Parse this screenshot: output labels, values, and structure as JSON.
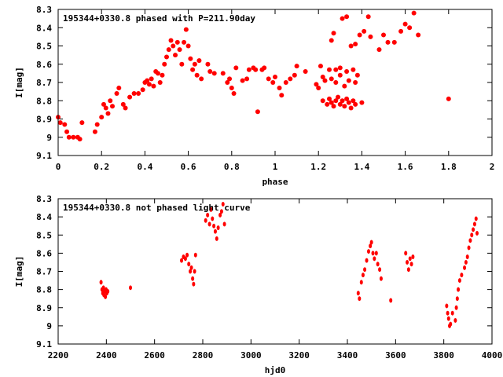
{
  "colors": {
    "points": "#ff0000",
    "axes": "#000000"
  },
  "chart_data": [
    {
      "type": "scatter",
      "title": "195344+0330.8 phased with P=211.90day",
      "xlabel": "phase",
      "ylabel": "I[mag]",
      "xlim": [
        0,
        2
      ],
      "ylim": [
        8.3,
        9.1
      ],
      "y_inverted": true,
      "xticks": [
        "0",
        "0.2",
        "0.4",
        "0.6",
        "0.8",
        "1",
        "1.2",
        "1.4",
        "1.6",
        "1.8",
        "2"
      ],
      "yticks": [
        "8.3",
        "8.4",
        "8.5",
        "8.6",
        "8.7",
        "8.8",
        "8.9",
        "9",
        "9.1"
      ],
      "legend": "top-left",
      "points": [
        [
          0,
          8.89
        ],
        [
          0.01,
          8.92
        ],
        [
          0.03,
          8.93
        ],
        [
          0.04,
          8.97
        ],
        [
          0.05,
          9.0
        ],
        [
          0.07,
          9.0
        ],
        [
          0.09,
          9.0
        ],
        [
          0.1,
          9.01
        ],
        [
          0.11,
          8.92
        ],
        [
          0.17,
          8.97
        ],
        [
          0.18,
          8.93
        ],
        [
          0.2,
          8.89
        ],
        [
          0.21,
          8.82
        ],
        [
          0.22,
          8.84
        ],
        [
          0.23,
          8.87
        ],
        [
          0.24,
          8.8
        ],
        [
          0.25,
          8.83
        ],
        [
          0.27,
          8.76
        ],
        [
          0.28,
          8.73
        ],
        [
          0.3,
          8.82
        ],
        [
          0.31,
          8.84
        ],
        [
          0.33,
          8.78
        ],
        [
          0.35,
          8.76
        ],
        [
          0.37,
          8.76
        ],
        [
          0.39,
          8.74
        ],
        [
          0.4,
          8.7
        ],
        [
          0.41,
          8.69
        ],
        [
          0.42,
          8.71
        ],
        [
          0.43,
          8.68
        ],
        [
          0.44,
          8.72
        ],
        [
          0.45,
          8.64
        ],
        [
          0.46,
          8.65
        ],
        [
          0.47,
          8.7
        ],
        [
          0.48,
          8.66
        ],
        [
          0.49,
          8.6
        ],
        [
          0.5,
          8.56
        ],
        [
          0.51,
          8.52
        ],
        [
          0.52,
          8.47
        ],
        [
          0.53,
          8.5
        ],
        [
          0.54,
          8.55
        ],
        [
          0.55,
          8.48
        ],
        [
          0.56,
          8.52
        ],
        [
          0.57,
          8.6
        ],
        [
          0.58,
          8.48
        ],
        [
          0.59,
          8.41
        ],
        [
          0.6,
          8.5
        ],
        [
          0.61,
          8.57
        ],
        [
          0.62,
          8.63
        ],
        [
          0.63,
          8.6
        ],
        [
          0.64,
          8.66
        ],
        [
          0.65,
          8.58
        ],
        [
          0.66,
          8.68
        ],
        [
          0.69,
          8.6
        ],
        [
          0.7,
          8.64
        ],
        [
          0.72,
          8.65
        ],
        [
          0.76,
          8.65
        ],
        [
          0.78,
          8.7
        ],
        [
          0.79,
          8.68
        ],
        [
          0.8,
          8.73
        ],
        [
          0.81,
          8.76
        ],
        [
          0.82,
          8.62
        ],
        [
          0.85,
          8.69
        ],
        [
          0.87,
          8.68
        ],
        [
          0.88,
          8.63
        ],
        [
          0.9,
          8.62
        ],
        [
          0.91,
          8.63
        ],
        [
          0.92,
          8.86
        ],
        [
          0.94,
          8.63
        ],
        [
          0.95,
          8.62
        ],
        [
          0.97,
          8.68
        ],
        [
          0.99,
          8.7
        ],
        [
          1.0,
          8.67
        ],
        [
          1.02,
          8.73
        ],
        [
          1.03,
          8.77
        ],
        [
          1.05,
          8.7
        ],
        [
          1.07,
          8.68
        ],
        [
          1.09,
          8.66
        ],
        [
          1.1,
          8.61
        ],
        [
          1.14,
          8.64
        ],
        [
          1.19,
          8.71
        ],
        [
          1.2,
          8.73
        ],
        [
          1.21,
          8.61
        ],
        [
          1.22,
          8.67
        ],
        [
          1.23,
          8.69
        ],
        [
          1.25,
          8.63
        ],
        [
          1.26,
          8.47
        ],
        [
          1.27,
          8.43
        ],
        [
          1.28,
          8.63
        ],
        [
          1.3,
          8.62
        ],
        [
          1.31,
          8.35
        ],
        [
          1.33,
          8.34
        ],
        [
          1.35,
          8.5
        ],
        [
          1.37,
          8.49
        ],
        [
          1.39,
          8.44
        ],
        [
          1.41,
          8.42
        ],
        [
          1.43,
          8.34
        ],
        [
          1.44,
          8.45
        ],
        [
          1.48,
          8.52
        ],
        [
          1.5,
          8.44
        ],
        [
          1.52,
          8.48
        ],
        [
          1.55,
          8.48
        ],
        [
          1.58,
          8.42
        ],
        [
          1.6,
          8.38
        ],
        [
          1.62,
          8.4
        ],
        [
          1.64,
          8.32
        ],
        [
          1.66,
          8.44
        ],
        [
          1.8,
          8.79
        ],
        [
          1.22,
          8.8
        ],
        [
          1.24,
          8.82
        ],
        [
          1.25,
          8.79
        ],
        [
          1.26,
          8.81
        ],
        [
          1.27,
          8.83
        ],
        [
          1.28,
          8.8
        ],
        [
          1.29,
          8.78
        ],
        [
          1.3,
          8.82
        ],
        [
          1.31,
          8.8
        ],
        [
          1.32,
          8.83
        ],
        [
          1.33,
          8.79
        ],
        [
          1.34,
          8.81
        ],
        [
          1.35,
          8.84
        ],
        [
          1.36,
          8.8
        ],
        [
          1.37,
          8.82
        ],
        [
          1.4,
          8.81
        ],
        [
          1.26,
          8.68
        ],
        [
          1.28,
          8.7
        ],
        [
          1.3,
          8.66
        ],
        [
          1.32,
          8.72
        ],
        [
          1.33,
          8.64
        ],
        [
          1.34,
          8.69
        ],
        [
          1.36,
          8.63
        ],
        [
          1.37,
          8.7
        ],
        [
          1.38,
          8.66
        ]
      ]
    },
    {
      "type": "scatter",
      "title": "195344+0330.8 not phased light curve",
      "xlabel": "hjd0",
      "ylabel": "I[mag]",
      "xlim": [
        2200,
        4000
      ],
      "ylim": [
        8.3,
        9.1
      ],
      "y_inverted": true,
      "xticks": [
        "2200",
        "2400",
        "2600",
        "2800",
        "3000",
        "3200",
        "3400",
        "3600",
        "3800",
        "4000"
      ],
      "yticks": [
        "8.3",
        "8.4",
        "8.5",
        "8.6",
        "8.7",
        "8.8",
        "8.9",
        "9",
        "9.1"
      ],
      "legend": "top-left",
      "points": [
        [
          2378,
          8.76
        ],
        [
          2382,
          8.8
        ],
        [
          2385,
          8.82
        ],
        [
          2388,
          8.79
        ],
        [
          2390,
          8.83
        ],
        [
          2393,
          8.81
        ],
        [
          2396,
          8.84
        ],
        [
          2399,
          8.8
        ],
        [
          2402,
          8.82
        ],
        [
          2406,
          8.81
        ],
        [
          2500,
          8.79
        ],
        [
          2712,
          8.64
        ],
        [
          2720,
          8.62
        ],
        [
          2728,
          8.63
        ],
        [
          2735,
          8.61
        ],
        [
          2742,
          8.66
        ],
        [
          2748,
          8.7
        ],
        [
          2753,
          8.68
        ],
        [
          2758,
          8.74
        ],
        [
          2762,
          8.77
        ],
        [
          2766,
          8.7
        ],
        [
          2770,
          8.61
        ],
        [
          2812,
          8.42
        ],
        [
          2820,
          8.39
        ],
        [
          2828,
          8.44
        ],
        [
          2834,
          8.36
        ],
        [
          2840,
          8.41
        ],
        [
          2846,
          8.45
        ],
        [
          2852,
          8.48
        ],
        [
          2858,
          8.52
        ],
        [
          2864,
          8.46
        ],
        [
          2872,
          8.39
        ],
        [
          2878,
          8.37
        ],
        [
          2884,
          8.33
        ],
        [
          2890,
          8.44
        ],
        [
          3445,
          8.82
        ],
        [
          3450,
          8.85
        ],
        [
          3458,
          8.76
        ],
        [
          3465,
          8.72
        ],
        [
          3472,
          8.69
        ],
        [
          3480,
          8.64
        ],
        [
          3488,
          8.59
        ],
        [
          3495,
          8.56
        ],
        [
          3500,
          8.54
        ],
        [
          3506,
          8.6
        ],
        [
          3512,
          8.63
        ],
        [
          3520,
          8.6
        ],
        [
          3526,
          8.66
        ],
        [
          3534,
          8.69
        ],
        [
          3540,
          8.74
        ],
        [
          3580,
          8.86
        ],
        [
          3642,
          8.6
        ],
        [
          3648,
          8.65
        ],
        [
          3654,
          8.69
        ],
        [
          3660,
          8.63
        ],
        [
          3666,
          8.66
        ],
        [
          3672,
          8.62
        ],
        [
          3812,
          8.89
        ],
        [
          3816,
          8.93
        ],
        [
          3820,
          8.96
        ],
        [
          3824,
          9.0
        ],
        [
          3828,
          8.99
        ],
        [
          3836,
          8.93
        ],
        [
          3848,
          8.97
        ],
        [
          3852,
          8.9
        ],
        [
          3856,
          8.85
        ],
        [
          3860,
          8.8
        ],
        [
          3866,
          8.75
        ],
        [
          3874,
          8.72
        ],
        [
          3886,
          8.68
        ],
        [
          3892,
          8.65
        ],
        [
          3898,
          8.62
        ],
        [
          3904,
          8.57
        ],
        [
          3910,
          8.53
        ],
        [
          3916,
          8.5
        ],
        [
          3922,
          8.47
        ],
        [
          3928,
          8.44
        ],
        [
          3934,
          8.41
        ],
        [
          3938,
          8.49
        ]
      ]
    }
  ]
}
